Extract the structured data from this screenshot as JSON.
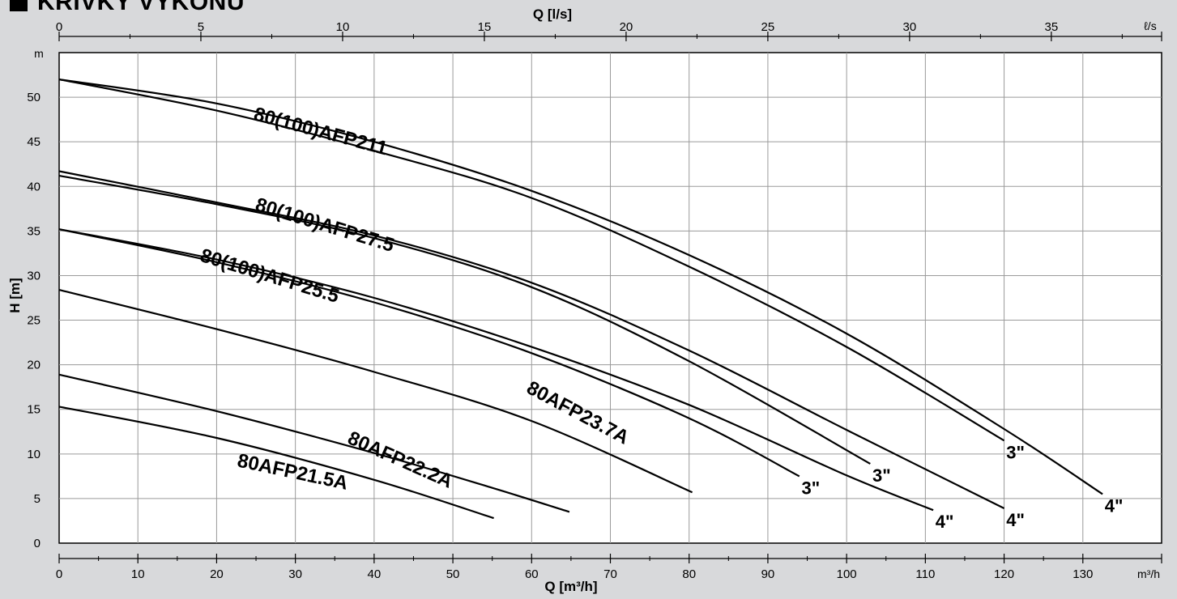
{
  "title": "KRIVKY VYKONU",
  "chart_data": {
    "type": "line",
    "xlabel": "Q [m³/h]",
    "xunit": "m³/h",
    "x2label": "Q [l/s]",
    "x2unit": "ℓ/s",
    "ylabel": "H [m]",
    "yunit": "m",
    "xlim": [
      0,
      140
    ],
    "ylim": [
      0,
      55
    ],
    "x2lim": [
      0,
      38.89
    ],
    "xticks": [
      0,
      10,
      20,
      30,
      40,
      50,
      60,
      70,
      80,
      90,
      100,
      110,
      120,
      130
    ],
    "x2ticks": [
      0,
      5,
      10,
      15,
      20,
      25,
      30,
      35
    ],
    "yticks": [
      0,
      5,
      10,
      15,
      20,
      25,
      30,
      35,
      40,
      45,
      50
    ],
    "grid": true,
    "curves": [
      {
        "group": "80(100)AFP211",
        "end_label": "3\"",
        "x": [
          0,
          20,
          40,
          60,
          80,
          100,
          120
        ],
        "y": [
          52,
          48.5,
          44,
          38.7,
          31,
          22,
          11.5
        ]
      },
      {
        "group": "80(100)AFP211",
        "end_label": "4\"",
        "x": [
          0,
          20,
          40,
          60,
          80,
          100,
          120,
          132.5
        ],
        "y": [
          52,
          49.3,
          45,
          39.5,
          32.3,
          23.5,
          12.8,
          5.5
        ]
      },
      {
        "group": "80(100)AFP27.5",
        "end_label": "3\"",
        "x": [
          0,
          20,
          40,
          60,
          80,
          103
        ],
        "y": [
          41.2,
          38,
          34.2,
          28.7,
          20.4,
          8.9
        ]
      },
      {
        "group": "80(100)AFP27.5",
        "end_label": "4\"",
        "x": [
          0,
          20,
          40,
          60,
          80,
          100,
          120
        ],
        "y": [
          41.7,
          38.2,
          34.5,
          29.2,
          21.6,
          12.7,
          3.9
        ]
      },
      {
        "group": "80(100)AFP25.5",
        "end_label": "3\"",
        "x": [
          0,
          20,
          40,
          60,
          80,
          94
        ],
        "y": [
          35.2,
          31.5,
          27,
          21.3,
          14,
          7.5
        ]
      },
      {
        "group": "80(100)AFP25.5",
        "end_label": "4\"",
        "x": [
          0,
          20,
          40,
          60,
          80,
          100,
          111
        ],
        "y": [
          35.2,
          31.8,
          27.5,
          22,
          15.5,
          7.6,
          3.7
        ]
      },
      {
        "group": "80AFP23.7A",
        "end_label": "",
        "x": [
          0,
          20,
          40,
          60,
          80.4
        ],
        "y": [
          28.4,
          24,
          19.2,
          13.7,
          5.7
        ]
      },
      {
        "group": "80AFP22.2A",
        "end_label": "",
        "x": [
          0,
          20,
          40,
          55,
          64.8
        ],
        "y": [
          18.9,
          14.8,
          10.1,
          6.2,
          3.5
        ]
      },
      {
        "group": "80AFP21.5A",
        "end_label": "",
        "x": [
          0,
          20,
          40,
          55.2
        ],
        "y": [
          15.3,
          11.8,
          7.1,
          2.8
        ]
      }
    ],
    "labels": [
      {
        "text": "80(100)AFP211",
        "x": 33,
        "y": 45.5,
        "angle": 15
      },
      {
        "text": "80(100)AFP27.5",
        "x": 33.5,
        "y": 35,
        "angle": 17
      },
      {
        "text": "80(100)AFP25.5",
        "x": 26.5,
        "y": 29.3,
        "angle": 17
      },
      {
        "text": "80AFP23.7A",
        "x": 65.5,
        "y": 14,
        "angle": 28
      },
      {
        "text": "80AFP22.2A",
        "x": 43,
        "y": 8.7,
        "angle": 24
      },
      {
        "text": "80AFP21.5A",
        "x": 29.5,
        "y": 7.3,
        "angle": 12
      }
    ]
  }
}
